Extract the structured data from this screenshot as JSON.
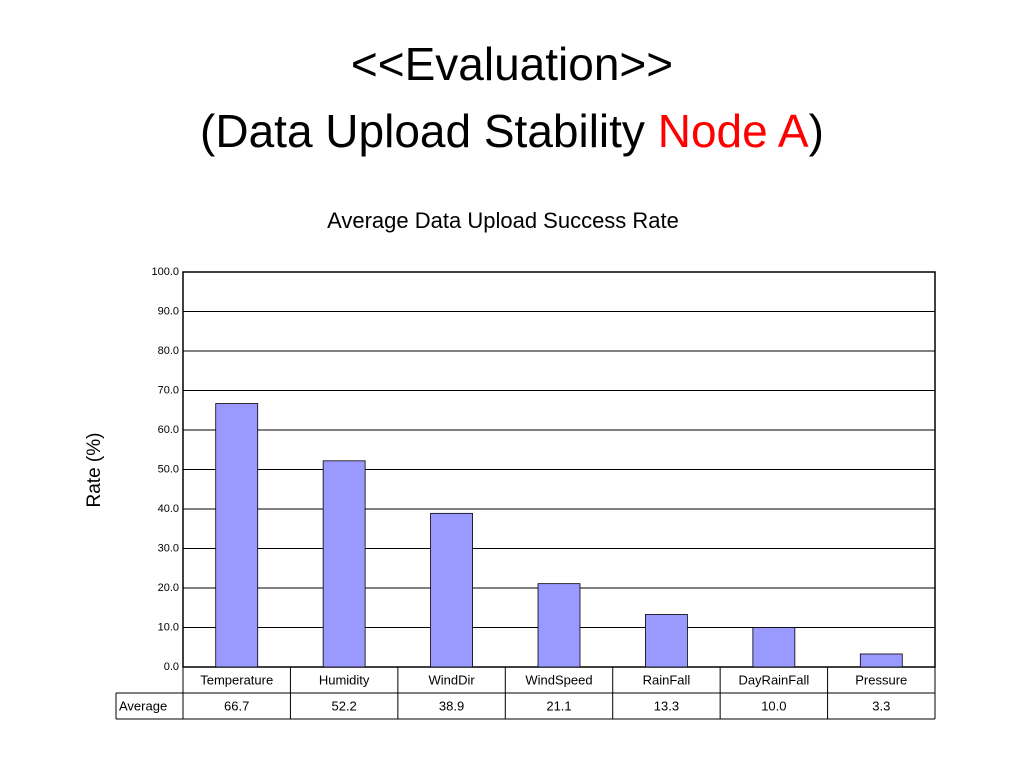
{
  "slide": {
    "title": "<<Evaluation>>",
    "subtitle_parts": [
      "(Data Upload Stability ",
      "Node A",
      ")"
    ]
  },
  "chart_data": {
    "type": "bar",
    "title": "Average Data Upload Success Rate",
    "y_label": "Rate (%)",
    "categories": [
      "Temperature",
      "Humidity",
      "WindDir",
      "WindSpeed",
      "RainFall",
      "DayRainFall",
      "Pressure"
    ],
    "series": [
      {
        "name": "Average",
        "color": "#9999ff",
        "values": [
          66.7,
          52.2,
          38.9,
          21.1,
          13.3,
          10.0,
          3.3
        ],
        "value_labels": [
          "66.7",
          "52.2",
          "38.9",
          "21.1",
          "13.3",
          "10.0",
          "3.3"
        ]
      }
    ],
    "ylim": [
      0,
      100
    ],
    "yticks": [
      {
        "value": 0,
        "label": "0.0"
      },
      {
        "value": 10,
        "label": "10.0"
      },
      {
        "value": 20,
        "label": "20.0"
      },
      {
        "value": 30,
        "label": "30.0"
      },
      {
        "value": 40,
        "label": "40.0"
      },
      {
        "value": 50,
        "label": "50.0"
      },
      {
        "value": 60,
        "label": "60.0"
      },
      {
        "value": 70,
        "label": "70.0"
      },
      {
        "value": 80,
        "label": "80.0"
      },
      {
        "value": 90,
        "label": "90.0"
      },
      {
        "value": 100,
        "label": "100.0"
      }
    ],
    "grid": true
  }
}
